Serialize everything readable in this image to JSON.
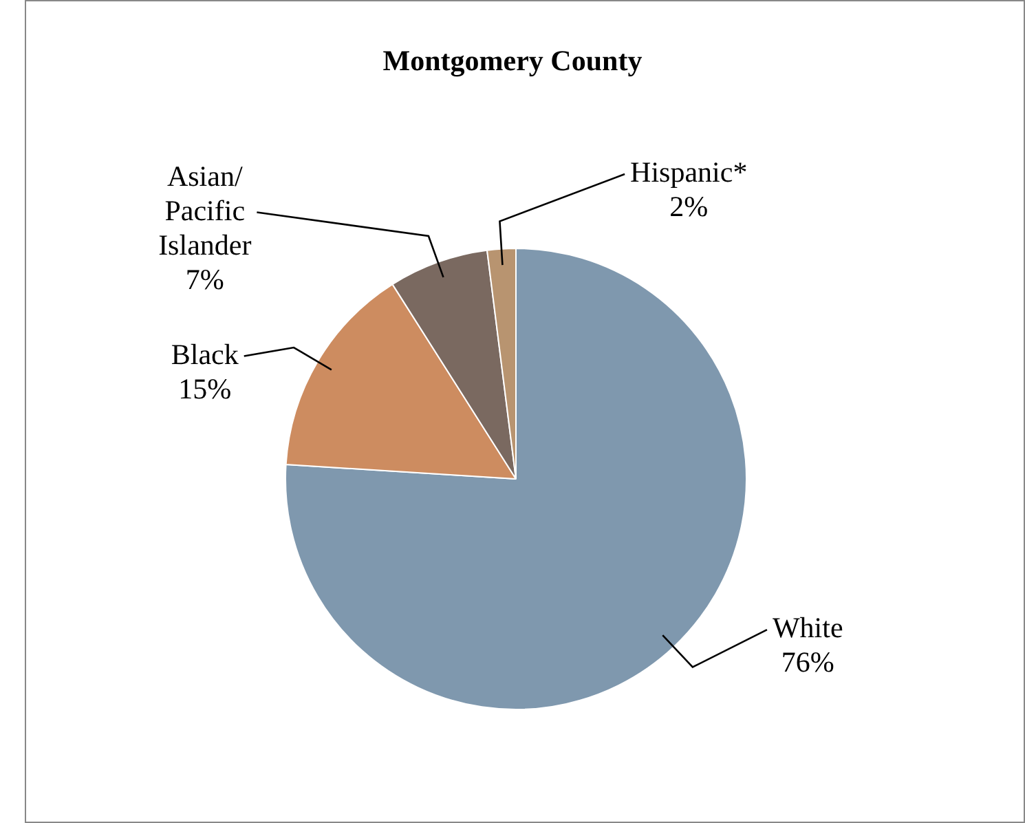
{
  "chart_data": {
    "type": "pie",
    "title": "Montgomery County",
    "categories": [
      "White",
      "Black",
      "Asian/ Pacific Islander",
      "Hispanic*"
    ],
    "values": [
      76,
      15,
      7,
      2
    ],
    "value_labels": [
      "76%",
      "15%",
      "7%",
      "2%"
    ],
    "colors": [
      "#7f98ae",
      "#cd8c60",
      "#7a6960",
      "#b89470"
    ],
    "legend": false
  }
}
